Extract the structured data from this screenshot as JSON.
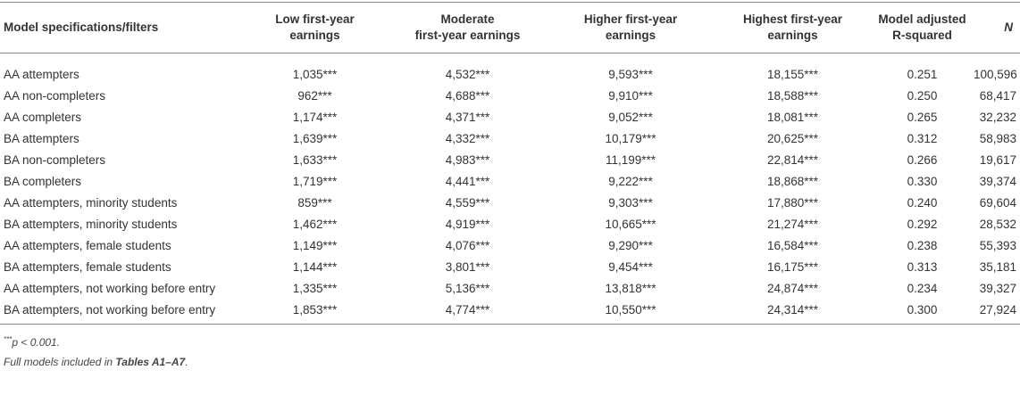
{
  "table": {
    "columns": [
      "Model specifications/filters",
      "Low first-year\nearnings",
      "Moderate\nfirst-year earnings",
      "Higher first-year\nearnings",
      "Highest first-year\nearnings",
      "Model adjusted\nR-squared",
      "N"
    ],
    "rows": [
      [
        "AA attempters",
        "1,035***",
        "4,532***",
        "9,593***",
        "18,155***",
        "0.251",
        "100,596"
      ],
      [
        "AA non-completers",
        "962***",
        "4,688***",
        "9,910***",
        "18,588***",
        "0.250",
        "68,417"
      ],
      [
        "AA completers",
        "1,174***",
        "4,371***",
        "9,052***",
        "18,081***",
        "0.265",
        "32,232"
      ],
      [
        "BA attempters",
        "1,639***",
        "4,332***",
        "10,179***",
        "20,625***",
        "0.312",
        "58,983"
      ],
      [
        "BA non-completers",
        "1,633***",
        "4,983***",
        "11,199***",
        "22,814***",
        "0.266",
        "19,617"
      ],
      [
        "BA completers",
        "1,719***",
        "4,441***",
        "9,222***",
        "18,868***",
        "0.330",
        "39,374"
      ],
      [
        "AA attempters, minority students",
        "859***",
        "4,559***",
        "9,303***",
        "17,880***",
        "0.240",
        "69,604"
      ],
      [
        "BA attempters, minority students",
        "1,462***",
        "4,919***",
        "10,665***",
        "21,274***",
        "0.292",
        "28,532"
      ],
      [
        "AA attempters, female students",
        "1,149***",
        "4,076***",
        "9,290***",
        "16,584***",
        "0.238",
        "55,393"
      ],
      [
        "BA attempters, female students",
        "1,144***",
        "3,801***",
        "9,454***",
        "16,175***",
        "0.313",
        "35,181"
      ],
      [
        "AA attempters, not working before entry",
        "1,335***",
        "5,136***",
        "13,818***",
        "24,874***",
        "0.234",
        "39,327"
      ],
      [
        "BA attempters, not working before entry",
        "1,853***",
        "4,774***",
        "10,550***",
        "24,314***",
        "0.300",
        "27,924"
      ]
    ]
  },
  "notes": {
    "significance": {
      "marker": "***",
      "text": "p < 0.001."
    },
    "source": {
      "prefix": "Full models included in ",
      "ref": "Tables A1–A7",
      "suffix": "."
    }
  }
}
